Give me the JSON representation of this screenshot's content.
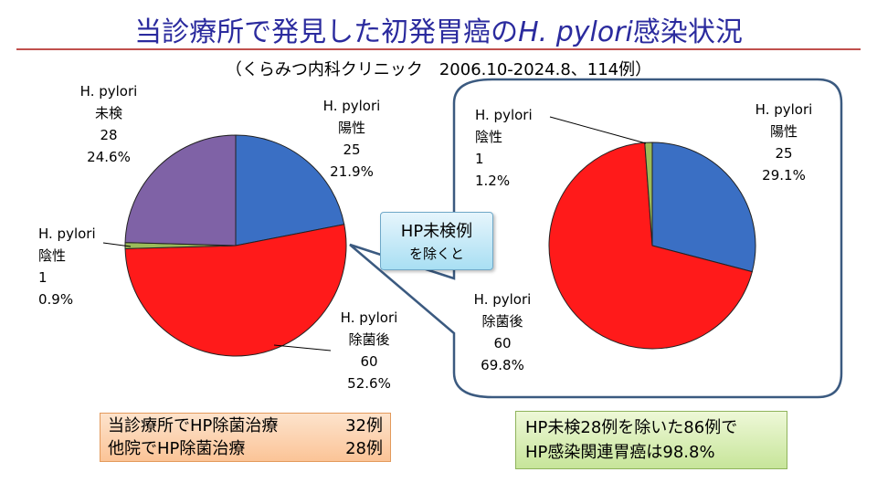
{
  "title": {
    "main": "当診療所で発見した初発胃癌の",
    "italic": "H. pylori",
    "suffix": "感染状況"
  },
  "subtitle": "（くらみつ内科クリニック　2006.10-2024.8、114例）",
  "callout": {
    "line1": "HP未検例",
    "line2": "を除くと"
  },
  "left_labels": {
    "untested": {
      "line1": "H. pylori",
      "line2": "未検",
      "count": "28",
      "pct": "24.6%"
    },
    "positive": {
      "line1": "H. pylori",
      "line2": "陽性",
      "count": "25",
      "pct": "21.9%"
    },
    "negative": {
      "line1": "H. pylori",
      "line2": "陰性",
      "count": "1",
      "pct": "0.9%"
    },
    "eradicated": {
      "line1": "H. pylori",
      "line2": "除菌後",
      "count": "60",
      "pct": "52.6%"
    }
  },
  "right_labels": {
    "negative": {
      "line1": "H. pylori",
      "line2": "陰性",
      "count": "1",
      "pct": "1.2%"
    },
    "positive": {
      "line1": "H. pylori",
      "line2": "陽性",
      "count": "25",
      "pct": "29.1%"
    },
    "eradicated": {
      "line1": "H. pylori",
      "line2": "除菌後",
      "count": "60",
      "pct": "69.8%"
    }
  },
  "box_orange": {
    "row1": {
      "label": "当診療所でHP除菌治療",
      "value": "32例"
    },
    "row2": {
      "label": "他院でHP除菌治療",
      "value": "28例"
    }
  },
  "box_green": {
    "line1": "HP未検28例を除いた86例で",
    "line2": "HP感染関連胃癌は98.8%"
  },
  "colors": {
    "positive": "#3a6fc4",
    "eradicated": "#ff1a1a",
    "negative": "#9bbb59",
    "untested": "#7f62a6",
    "title": "#2b2b9e"
  },
  "chart_data": [
    {
      "type": "pie",
      "slices": [
        {
          "name": "H. pylori 陽性",
          "value": 25,
          "percent": 21.9
        },
        {
          "name": "H. pylori 除菌後",
          "value": 60,
          "percent": 52.6
        },
        {
          "name": "H. pylori 陰性",
          "value": 1,
          "percent": 0.9
        },
        {
          "name": "H. pylori 未検",
          "value": 28,
          "percent": 24.6
        }
      ]
    },
    {
      "type": "pie",
      "slices": [
        {
          "name": "H. pylori 陽性",
          "value": 25,
          "percent": 29.1
        },
        {
          "name": "H. pylori 除菌後",
          "value": 60,
          "percent": 69.8
        },
        {
          "name": "H. pylori 陰性",
          "value": 1,
          "percent": 1.2
        }
      ]
    }
  ]
}
